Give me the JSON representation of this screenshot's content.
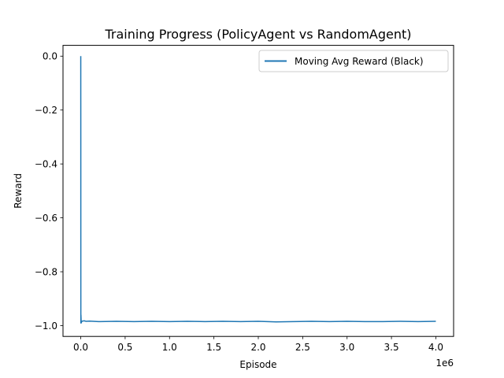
{
  "chart_data": {
    "type": "line",
    "title": "Training Progress (PolicyAgent vs RandomAgent)",
    "xlabel": "Episode",
    "ylabel": "Reward",
    "x_offset_text": "1e6",
    "xlim": [
      -200000,
      4200000
    ],
    "ylim": [
      -1.04,
      0.04
    ],
    "grid": false,
    "legend_position": "upper-right",
    "x_ticks": [
      {
        "value": 0,
        "label": "0.0"
      },
      {
        "value": 500000,
        "label": "0.5"
      },
      {
        "value": 1000000,
        "label": "1.0"
      },
      {
        "value": 1500000,
        "label": "1.5"
      },
      {
        "value": 2000000,
        "label": "2.0"
      },
      {
        "value": 2500000,
        "label": "2.5"
      },
      {
        "value": 3000000,
        "label": "3.0"
      },
      {
        "value": 3500000,
        "label": "3.5"
      },
      {
        "value": 4000000,
        "label": "4.0"
      }
    ],
    "y_ticks": [
      {
        "value": 0.0,
        "label": "0.0"
      },
      {
        "value": -0.2,
        "label": "−0.2"
      },
      {
        "value": -0.4,
        "label": "−0.4"
      },
      {
        "value": -0.6,
        "label": "−0.6"
      },
      {
        "value": -0.8,
        "label": "−0.8"
      },
      {
        "value": -1.0,
        "label": "−1.0"
      }
    ],
    "series": [
      {
        "name": "Moving Avg Reward (Black)",
        "color": "#1f77b4",
        "x": [
          0,
          500,
          1000,
          2000,
          5000,
          10000,
          20000,
          40000,
          60000,
          100000,
          200000,
          400000,
          600000,
          800000,
          1000000,
          1200000,
          1400000,
          1600000,
          1800000,
          2000000,
          2200000,
          2400000,
          2600000,
          2800000,
          3000000,
          3200000,
          3400000,
          3600000,
          3800000,
          4000000
        ],
        "y": [
          0.0,
          -0.3,
          -0.99,
          -0.96,
          -0.99,
          -0.985,
          -0.983,
          -0.982,
          -0.984,
          -0.983,
          -0.985,
          -0.984,
          -0.985,
          -0.984,
          -0.985,
          -0.984,
          -0.985,
          -0.984,
          -0.985,
          -0.984,
          -0.986,
          -0.985,
          -0.984,
          -0.985,
          -0.984,
          -0.985,
          -0.985,
          -0.984,
          -0.985,
          -0.984
        ]
      }
    ]
  }
}
